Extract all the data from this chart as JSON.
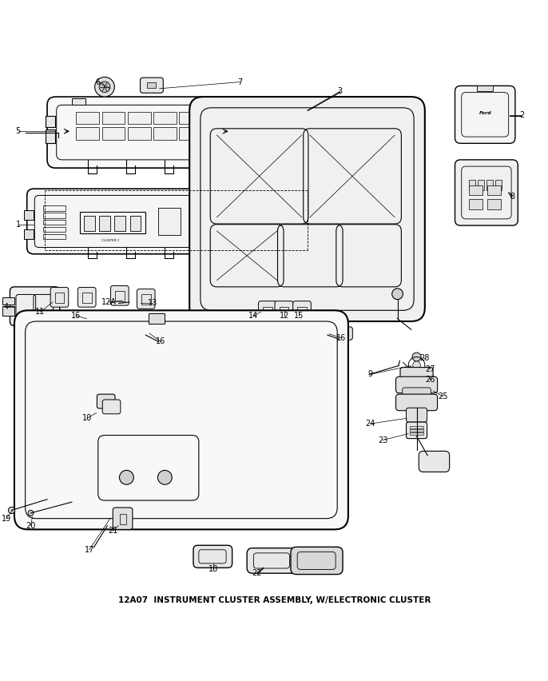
{
  "title": "12A07  INSTRUMENT CLUSTER ASSEMBLY, W/ELECTRONIC CLUSTER",
  "bg_color": "#ffffff",
  "line_color": "#000000"
}
